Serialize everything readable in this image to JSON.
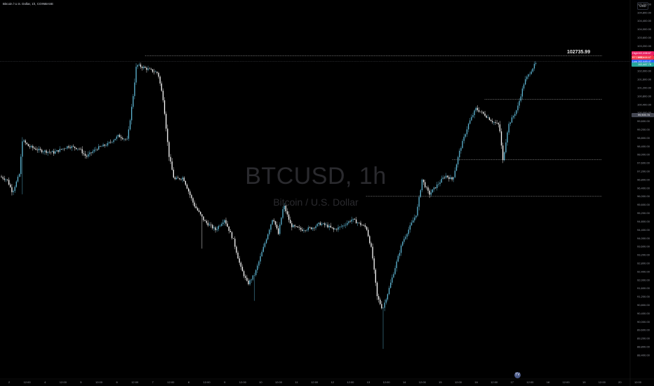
{
  "header": {
    "symbol": "Bitcoin / U.S. Dollar, 1h, COINBASE"
  },
  "currency": "USD",
  "watermark": {
    "title": "BTCUSD, 1h",
    "subtitle": "Bitcoin / U.S. Dollar"
  },
  "level": {
    "label": "102735.99",
    "value": 102735.99
  },
  "logo": "TV",
  "price_tags": [
    {
      "name": "High",
      "value": "102,498.67",
      "price": 102498.67,
      "color": "#e91e63"
    },
    {
      "name": "BTCUSD",
      "value": "102,468.67",
      "price": 102468.67,
      "color": "#f23645"
    },
    {
      "name": "Low",
      "value": "102,449.47",
      "price": 102449.47,
      "color": "#2962ff"
    },
    {
      "name": "",
      "value": "102,467.78",
      "price": 102467.78,
      "color": "#26a69a"
    },
    {
      "name": "",
      "value": "99,905.78",
      "price": 99905.78,
      "color": "#434651"
    }
  ],
  "colors": {
    "background": "#000000",
    "up": "#5fb8d6",
    "down": "#ffffff",
    "axis_text": "#9598a1",
    "level_line": "#c8c8c8"
  },
  "chart_data": {
    "type": "candlestick",
    "title": "BTCUSD, 1h",
    "subtitle": "Bitcoin / U.S. Dollar",
    "exchange": "COINBASE",
    "interval": "1h",
    "ylim": [
      88200,
      105200
    ],
    "y_ticks": [
      "105,200.00",
      "104,800.00",
      "104,400.00",
      "104,000.00",
      "103,600.00",
      "103,200.00",
      "102,800.00",
      "102,400.00",
      "102,000.00",
      "101,600.00",
      "101,200.00",
      "100,800.00",
      "100,400.00",
      "100,000.00",
      "99,600.00",
      "99,200.00",
      "98,800.00",
      "98,400.00",
      "98,000.00",
      "97,600.00",
      "97,200.00",
      "96,800.00",
      "96,400.00",
      "96,000.00",
      "95,600.00",
      "95,200.00",
      "94,800.00",
      "94,400.00",
      "94,000.00",
      "93,600.00",
      "93,200.00",
      "92,800.00",
      "92,400.00",
      "92,000.00",
      "91,600.00",
      "91,200.00",
      "90,800.00",
      "90,400.00",
      "90,000.00",
      "89,600.00",
      "89,200.00",
      "88,800.00",
      "88,400.00"
    ],
    "x_ticks": [
      "2",
      "12:00",
      "4",
      "12:00",
      "5",
      "12:00",
      "6",
      "12:00",
      "7",
      "12:00",
      "8",
      "12:00",
      "9",
      "12:00",
      "10",
      "12:00",
      "11",
      "12:00",
      "12",
      "12:00",
      "13",
      "12:00",
      "14",
      "12:00",
      "15",
      "12:00",
      "16",
      "12:00",
      "17",
      "12:00",
      "18",
      "12:00",
      "19",
      "12:00",
      "20",
      "12:00"
    ],
    "x_time_range": [
      0,
      18.4
    ],
    "path_keypoints": [
      [
        0.0,
        96950
      ],
      [
        0.2,
        96800
      ],
      [
        0.35,
        96200
      ],
      [
        0.55,
        97100
      ],
      [
        0.62,
        98700
      ],
      [
        0.8,
        98400
      ],
      [
        1.1,
        98200
      ],
      [
        1.5,
        98100
      ],
      [
        1.9,
        98400
      ],
      [
        2.2,
        98300
      ],
      [
        2.4,
        97900
      ],
      [
        2.7,
        98300
      ],
      [
        3.0,
        98500
      ],
      [
        3.3,
        98900
      ],
      [
        3.55,
        98700
      ],
      [
        3.7,
        100700
      ],
      [
        3.8,
        102300
      ],
      [
        4.1,
        102100
      ],
      [
        4.4,
        101900
      ],
      [
        4.55,
        100600
      ],
      [
        4.7,
        98000
      ],
      [
        4.85,
        96800
      ],
      [
        5.1,
        96900
      ],
      [
        5.4,
        95600
      ],
      [
        5.7,
        94800
      ],
      [
        6.0,
        94400
      ],
      [
        6.25,
        94900
      ],
      [
        6.5,
        93900
      ],
      [
        6.7,
        92600
      ],
      [
        6.9,
        91800
      ],
      [
        7.1,
        92300
      ],
      [
        7.4,
        93900
      ],
      [
        7.6,
        95000
      ],
      [
        7.75,
        94200
      ],
      [
        7.9,
        95600
      ],
      [
        8.1,
        94600
      ],
      [
        8.4,
        94400
      ],
      [
        8.7,
        94500
      ],
      [
        8.9,
        94700
      ],
      [
        9.1,
        94600
      ],
      [
        9.3,
        94400
      ],
      [
        9.55,
        94600
      ],
      [
        9.8,
        94900
      ],
      [
        10.0,
        94700
      ],
      [
        10.2,
        94500
      ],
      [
        10.35,
        93400
      ],
      [
        10.5,
        91200
      ],
      [
        10.65,
        90600
      ],
      [
        10.8,
        91400
      ],
      [
        11.0,
        92600
      ],
      [
        11.2,
        93800
      ],
      [
        11.4,
        94500
      ],
      [
        11.6,
        95200
      ],
      [
        11.75,
        96800
      ],
      [
        11.95,
        96100
      ],
      [
        12.2,
        96600
      ],
      [
        12.4,
        97000
      ],
      [
        12.6,
        96800
      ],
      [
        12.8,
        98200
      ],
      [
        13.05,
        99500
      ],
      [
        13.25,
        100200
      ],
      [
        13.5,
        99900
      ],
      [
        13.7,
        99600
      ],
      [
        13.9,
        99400
      ],
      [
        14.0,
        97700
      ],
      [
        14.15,
        99400
      ],
      [
        14.4,
        100200
      ],
      [
        14.6,
        101500
      ],
      [
        14.9,
        102350
      ]
    ],
    "annotations": [
      {
        "type": "horizontal_ray",
        "price": 102735.99,
        "from_time": 4.0,
        "label": "102735.99"
      },
      {
        "type": "horizontal_ray",
        "price": 100650,
        "from_time": 13.45
      },
      {
        "type": "horizontal_ray",
        "price": 97750,
        "from_time": 12.55
      },
      {
        "type": "horizontal_ray",
        "price": 96000,
        "from_time": 10.15
      }
    ],
    "last_price": 102468.67
  }
}
